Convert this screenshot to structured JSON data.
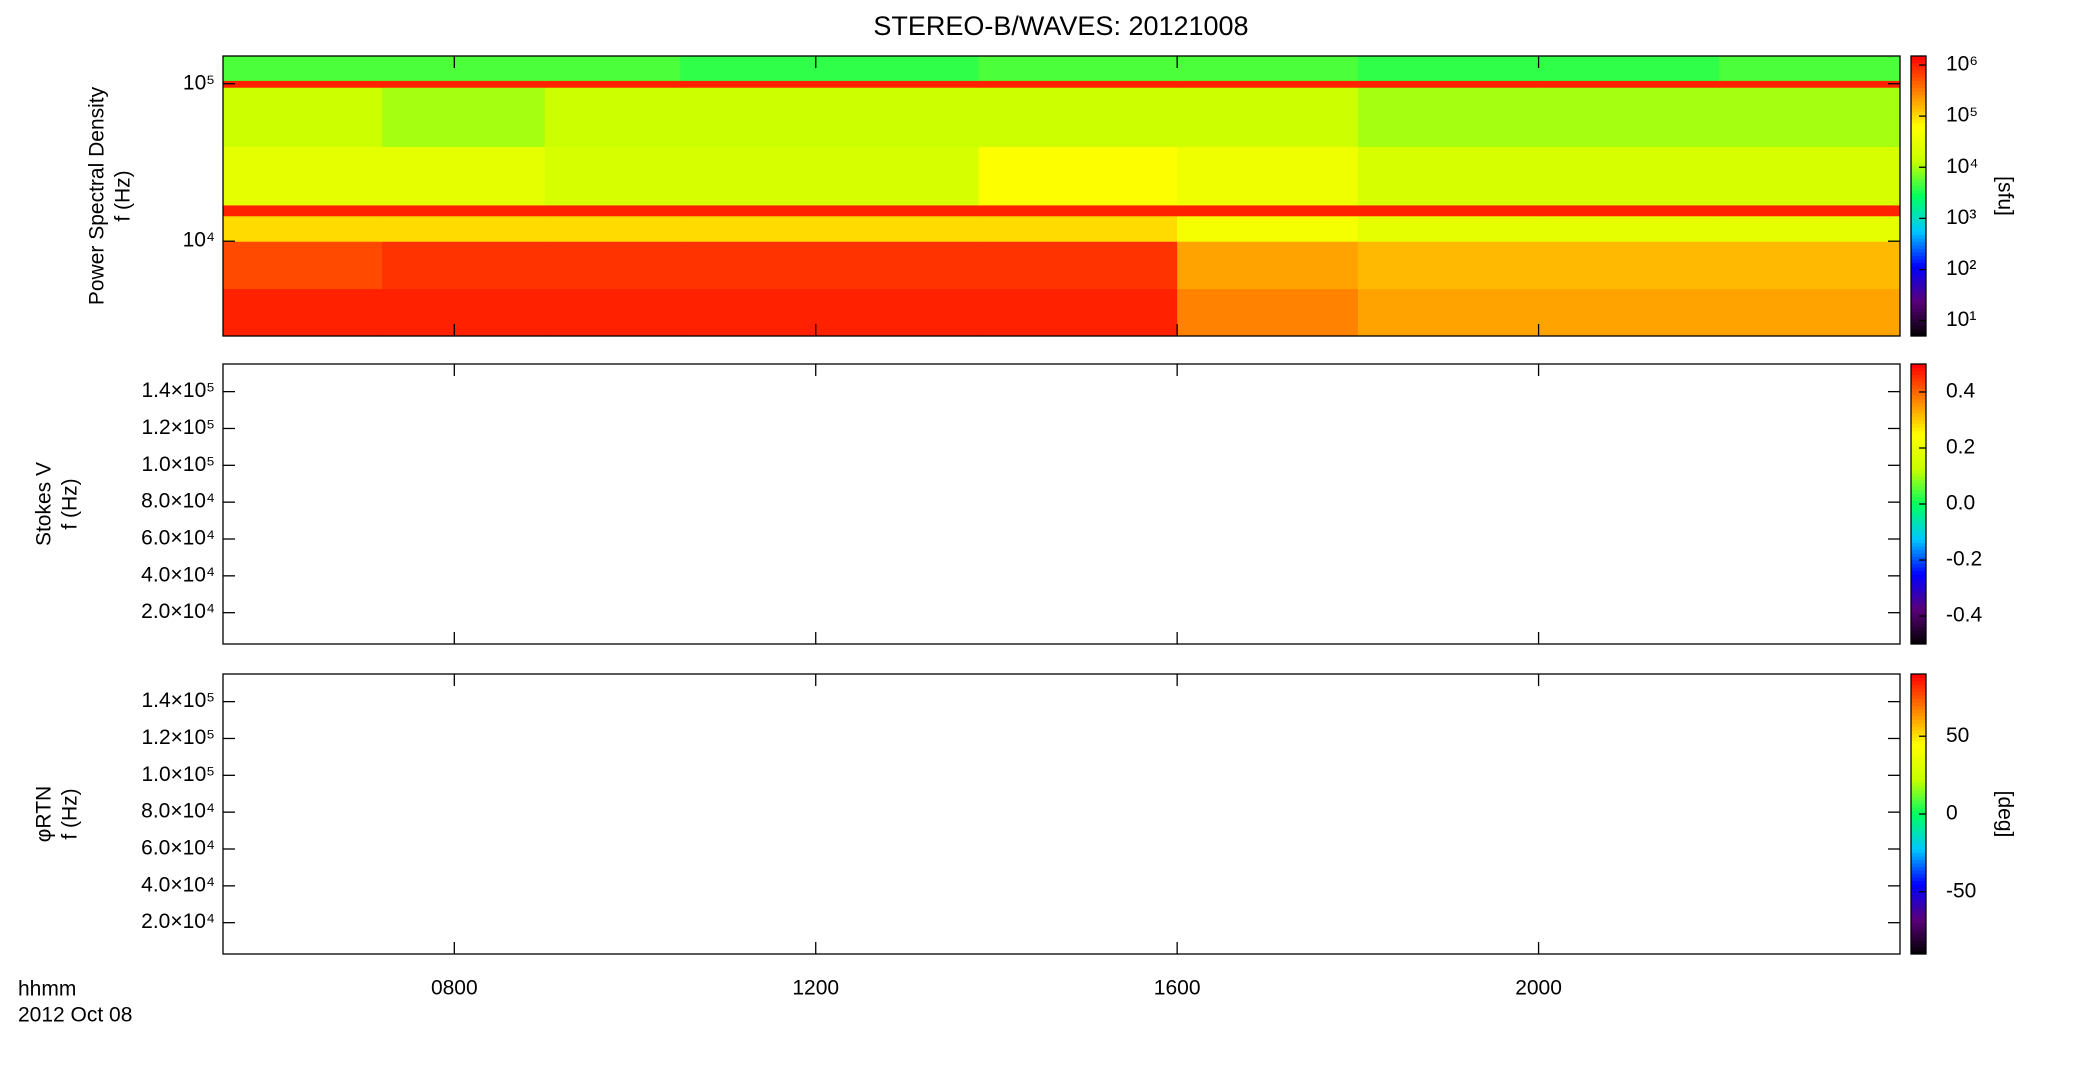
{
  "title": "STEREO-B/WAVES: 20121008",
  "x_axis": {
    "label": "hhmm",
    "date": "2012 Oct 08",
    "xlim": [
      5.44,
      24
    ],
    "xticks": [
      {
        "value": 8,
        "label": "0800"
      },
      {
        "value": 12,
        "label": "1200"
      },
      {
        "value": 16,
        "label": "1600"
      },
      {
        "value": 20,
        "label": "2000"
      }
    ]
  },
  "chart_data": [
    {
      "type": "heatmap",
      "ylabel": [
        "Power Spectral Density",
        "f (Hz)"
      ],
      "log_y": true,
      "ylim": [
        2500,
        150000
      ],
      "yticks": [
        {
          "value": 10000,
          "label": "10⁴"
        },
        {
          "value": 100000,
          "label": "10⁵"
        }
      ],
      "x_edges": [
        5.44,
        7.2,
        9,
        10.5,
        13.8,
        16,
        18,
        20,
        22,
        24
      ],
      "y_edges": [
        2500,
        5000,
        10000,
        14500,
        17000,
        40000,
        95000,
        105000,
        150000
      ],
      "values": [
        [
          1000000,
          1000000,
          1000000,
          1000000,
          1000000,
          300000,
          200000,
          200000,
          200000
        ],
        [
          600000,
          800000,
          800000,
          800000,
          800000,
          200000,
          150000,
          150000,
          150000
        ],
        [
          100000,
          100000,
          100000,
          100000,
          100000,
          50000,
          30000,
          30000,
          30000
        ],
        [
          1000000,
          1000000,
          1000000,
          1000000,
          1000000,
          1000000,
          1000000,
          1000000,
          1000000
        ],
        [
          30000,
          30000,
          20000,
          20000,
          60000,
          40000,
          20000,
          20000,
          20000
        ],
        [
          15000,
          10000,
          15000,
          15000,
          15000,
          15000,
          10000,
          10000,
          10000
        ],
        [
          1000000,
          1000000,
          1000000,
          1000000,
          1000000,
          1000000,
          1000000,
          1000000,
          1000000
        ],
        [
          5000,
          5000,
          5000,
          4000,
          5000,
          5000,
          4000,
          4000,
          5000
        ]
      ],
      "colorbar": {
        "label": "[sfu]",
        "log": true,
        "clim": [
          5,
          1500000
        ],
        "ticks": [
          {
            "value": 10,
            "label": "10¹"
          },
          {
            "value": 100,
            "label": "10²"
          },
          {
            "value": 1000,
            "label": "10³"
          },
          {
            "value": 10000,
            "label": "10⁴"
          },
          {
            "value": 100000,
            "label": "10⁵"
          },
          {
            "value": 1000000,
            "label": "10⁶"
          }
        ],
        "colormap": [
          "#000000",
          "#5a007a",
          "#0000ff",
          "#00c8ff",
          "#00ff60",
          "#c8ff00",
          "#ffff00",
          "#ff8000",
          "#ff0000"
        ]
      }
    },
    {
      "type": "heatmap",
      "ylabel": [
        "Stokes V",
        "f (Hz)"
      ],
      "log_y": false,
      "ylim": [
        3000,
        155000
      ],
      "yticks": [
        {
          "value": 20000,
          "label": "2.0×10⁴"
        },
        {
          "value": 40000,
          "label": "4.0×10⁴"
        },
        {
          "value": 60000,
          "label": "6.0×10⁴"
        },
        {
          "value": 80000,
          "label": "8.0×10⁴"
        },
        {
          "value": 100000,
          "label": "1.0×10⁵"
        },
        {
          "value": 120000,
          "label": "1.2×10⁵"
        },
        {
          "value": 140000,
          "label": "1.4×10⁵"
        }
      ],
      "colorbar": {
        "log": false,
        "clim": [
          -0.5,
          0.5
        ],
        "ticks": [
          -0.4,
          -0.2,
          {
            "value": 0,
            "label": "0.0"
          },
          0.2,
          0.4
        ],
        "colormap": [
          "#000000",
          "#5a007a",
          "#0000ff",
          "#00c8ff",
          "#00ff60",
          "#c8ff00",
          "#ffff00",
          "#ff8000",
          "#ff0000"
        ]
      }
    },
    {
      "type": "heatmap",
      "ylabel": [
        "φRTN",
        "f (Hz)"
      ],
      "log_y": false,
      "ylim": [
        3000,
        155000
      ],
      "yticks": [
        {
          "value": 20000,
          "label": "2.0×10⁴"
        },
        {
          "value": 40000,
          "label": "4.0×10⁴"
        },
        {
          "value": 60000,
          "label": "6.0×10⁴"
        },
        {
          "value": 80000,
          "label": "8.0×10⁴"
        },
        {
          "value": 100000,
          "label": "1.0×10⁵"
        },
        {
          "value": 120000,
          "label": "1.2×10⁵"
        },
        {
          "value": 140000,
          "label": "1.4×10⁵"
        }
      ],
      "colorbar": {
        "label": "[deg]",
        "log": false,
        "clim": [
          -90,
          90
        ],
        "ticks": [
          -50,
          0,
          50
        ],
        "colormap": [
          "#000000",
          "#5a007a",
          "#0000ff",
          "#00c8ff",
          "#00ff60",
          "#c8ff00",
          "#ffff00",
          "#ff8000",
          "#ff0000"
        ]
      }
    }
  ]
}
